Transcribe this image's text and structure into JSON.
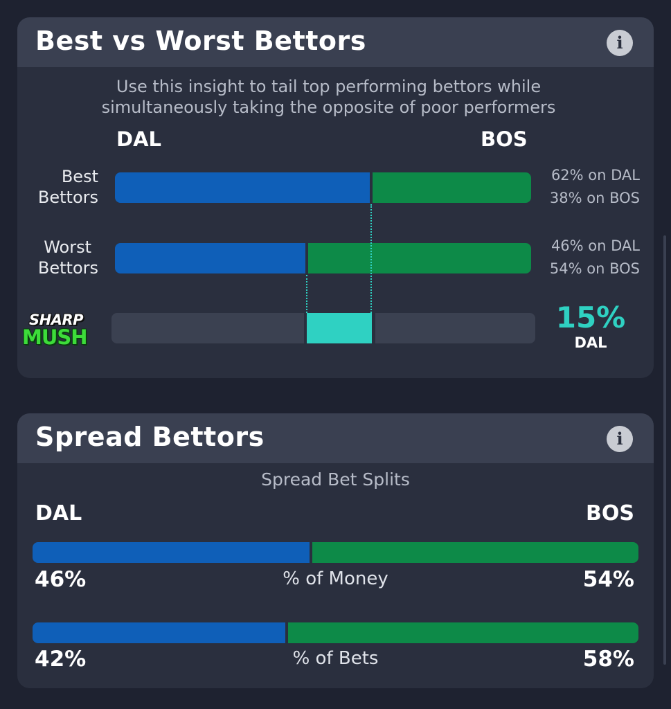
{
  "best_worst": {
    "title": "Best vs Worst Bettors",
    "subtitle_line1": "Use this insight to tail top performing bettors while",
    "subtitle_line2": "simultaneously taking the opposite of poor performers",
    "team_left": "DAL",
    "team_right": "BOS",
    "rows": [
      {
        "label_line1": "Best",
        "label_line2": "Bettors",
        "left_pct": 62,
        "right_pct": 38,
        "note_left": "62% on DAL",
        "note_right": "38% on BOS"
      },
      {
        "label_line1": "Worst",
        "label_line2": "Bettors",
        "left_pct": 46,
        "right_pct": 54,
        "note_left": "46% on DAL",
        "note_right": "54% on BOS"
      }
    ],
    "logo_line1": "SHARP",
    "logo_line2": "MUSH",
    "difference_pct": "15%",
    "difference_team": "DAL",
    "icon": "info-icon"
  },
  "spread": {
    "title": "Spread Bettors",
    "subtitle": "Spread Bet Splits",
    "team_left": "DAL",
    "team_right": "BOS",
    "rows": [
      {
        "left_pct": 46,
        "right_pct": 54,
        "left_text": "46%",
        "right_text": "54%",
        "label": "% of Money"
      },
      {
        "left_pct": 42,
        "right_pct": 58,
        "left_text": "42%",
        "right_text": "58%",
        "label": "% of Bets"
      }
    ],
    "icon": "info-icon"
  },
  "colors": {
    "background": "#1e2230",
    "card": "#2a2f3e",
    "card_header": "#3a4051",
    "dal_blue": "#0f5fb8",
    "bos_green": "#0d8a48",
    "accent_teal": "#2fd1c2"
  }
}
